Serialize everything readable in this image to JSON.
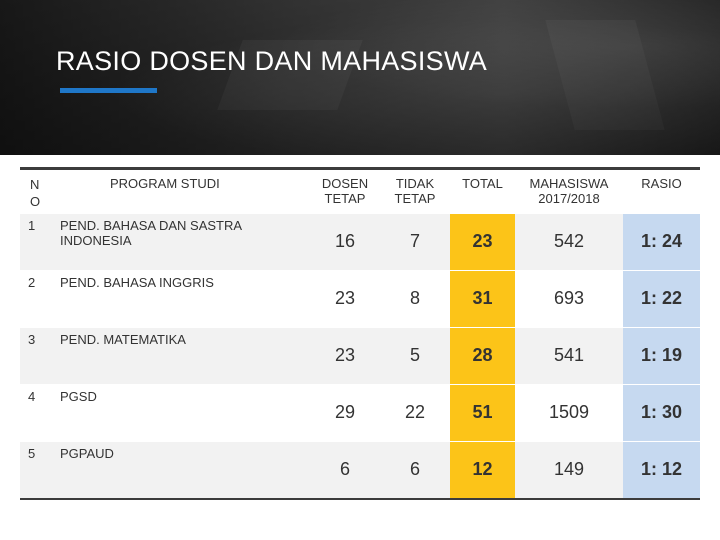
{
  "title": "RASIO DOSEN DAN MAHASISWA",
  "colors": {
    "total_col": "#fcc418",
    "rasio_col": "#c6d9f0",
    "accent_bar": "#1f77c8"
  },
  "table": {
    "headers": {
      "no": "N O",
      "program": "PROGRAM STUDI",
      "dosen_tetap": "DOSEN TETAP",
      "tidak_tetap": "TIDAK TETAP",
      "total": "TOTAL",
      "mahasiswa": "MAHASISWA 2017/2018",
      "rasio": "RASIO"
    },
    "rows": [
      {
        "no": "1",
        "program": "PEND. BAHASA DAN SASTRA INDONESIA",
        "dosen_tetap": "16",
        "tidak_tetap": "7",
        "total": "23",
        "mahasiswa": "542",
        "rasio": "1: 24"
      },
      {
        "no": "2",
        "program": "PEND. BAHASA INGGRIS",
        "dosen_tetap": "23",
        "tidak_tetap": "8",
        "total": "31",
        "mahasiswa": "693",
        "rasio": "1: 22"
      },
      {
        "no": "3",
        "program": "PEND. MATEMATIKA",
        "dosen_tetap": "23",
        "tidak_tetap": "5",
        "total": "28",
        "mahasiswa": "541",
        "rasio": "1: 19"
      },
      {
        "no": "4",
        "program": "PGSD",
        "dosen_tetap": "29",
        "tidak_tetap": "22",
        "total": "51",
        "mahasiswa": "1509",
        "rasio": "1: 30"
      },
      {
        "no": "5",
        "program": "PGPAUD",
        "dosen_tetap": "6",
        "tidak_tetap": "6",
        "total": "12",
        "mahasiswa": "149",
        "rasio": "1: 12"
      }
    ]
  }
}
